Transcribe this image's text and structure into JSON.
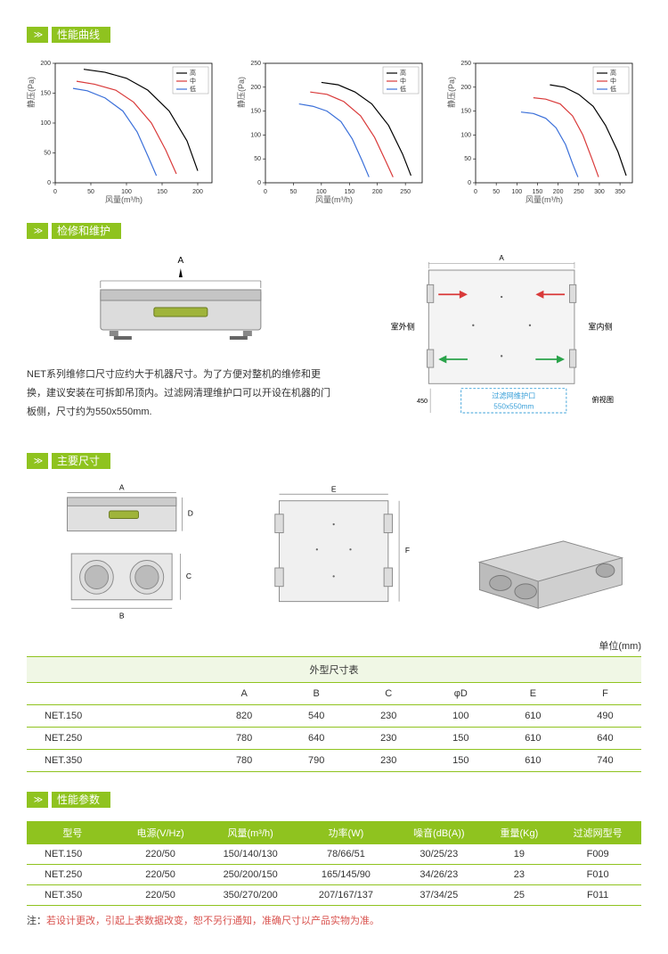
{
  "colors": {
    "accent": "#8fc31f",
    "line_high": "#000000",
    "line_mid": "#d93a3a",
    "line_low": "#3a6fd9"
  },
  "sections": {
    "performance_curve": "性能曲线",
    "maintenance": "检修和维护",
    "dimensions": "主要尺寸",
    "params": "性能参数"
  },
  "chart_common": {
    "ylabel": "静压(Pa)",
    "xlabel": "风量(m³/h)",
    "legend": [
      "高",
      "中",
      "低"
    ],
    "legend_colors": [
      "#000000",
      "#d93a3a",
      "#3a6fd9"
    ],
    "title_fontsize": 9,
    "axis_fontsize": 8,
    "grid_color": "#ffffff",
    "background_color": "#ffffff",
    "line_width": 1.2
  },
  "charts": [
    {
      "xlim": [
        0,
        220
      ],
      "ylim": [
        0,
        200
      ],
      "xtick_step": 50,
      "ytick_step": 50,
      "series": {
        "high": [
          [
            40,
            190
          ],
          [
            70,
            185
          ],
          [
            100,
            175
          ],
          [
            130,
            155
          ],
          [
            160,
            120
          ],
          [
            185,
            70
          ],
          [
            200,
            20
          ]
        ],
        "mid": [
          [
            30,
            170
          ],
          [
            55,
            165
          ],
          [
            85,
            155
          ],
          [
            110,
            135
          ],
          [
            135,
            100
          ],
          [
            155,
            55
          ],
          [
            170,
            15
          ]
        ],
        "low": [
          [
            25,
            158
          ],
          [
            45,
            154
          ],
          [
            70,
            142
          ],
          [
            95,
            120
          ],
          [
            115,
            85
          ],
          [
            130,
            45
          ],
          [
            142,
            12
          ]
        ]
      }
    },
    {
      "xlim": [
        0,
        280
      ],
      "ylim": [
        0,
        250
      ],
      "xtick_step": 50,
      "ytick_step": 50,
      "series": {
        "high": [
          [
            100,
            210
          ],
          [
            130,
            205
          ],
          [
            160,
            190
          ],
          [
            190,
            165
          ],
          [
            220,
            120
          ],
          [
            245,
            60
          ],
          [
            260,
            15
          ]
        ],
        "mid": [
          [
            80,
            190
          ],
          [
            110,
            185
          ],
          [
            140,
            170
          ],
          [
            170,
            140
          ],
          [
            195,
            95
          ],
          [
            215,
            45
          ],
          [
            228,
            12
          ]
        ],
        "low": [
          [
            60,
            165
          ],
          [
            85,
            160
          ],
          [
            110,
            150
          ],
          [
            135,
            128
          ],
          [
            155,
            92
          ],
          [
            172,
            48
          ],
          [
            185,
            12
          ]
        ]
      }
    },
    {
      "xlim": [
        0,
        380
      ],
      "ylim": [
        0,
        250
      ],
      "xtick_step": 50,
      "ytick_step": 50,
      "series": {
        "high": [
          [
            180,
            205
          ],
          [
            215,
            200
          ],
          [
            250,
            185
          ],
          [
            285,
            160
          ],
          [
            315,
            120
          ],
          [
            345,
            65
          ],
          [
            365,
            15
          ]
        ],
        "mid": [
          [
            140,
            178
          ],
          [
            170,
            175
          ],
          [
            205,
            165
          ],
          [
            235,
            140
          ],
          [
            260,
            100
          ],
          [
            282,
            50
          ],
          [
            298,
            12
          ]
        ],
        "low": [
          [
            110,
            148
          ],
          [
            140,
            145
          ],
          [
            170,
            135
          ],
          [
            195,
            115
          ],
          [
            218,
            80
          ],
          [
            235,
            40
          ],
          [
            248,
            12
          ]
        ]
      }
    }
  ],
  "maintenance": {
    "text": "NET系列维修口尺寸应约大于机器尺寸。为了方便对整机的维修和更换，建议安装在可拆卸吊顶内。过滤网清理维护口可以开设在机器的门板侧，尺寸约为550x550mm.",
    "label_A": "A",
    "right_labels": {
      "outside": "室外侧",
      "inside": "室内侧",
      "top_A": "A",
      "side_450": "450",
      "filter_port": "过滤网维护口",
      "filter_size": "550x550mm",
      "corner": "俯视图"
    },
    "arrow_colors": {
      "in": "#d93a3a",
      "out": "#2aa34a"
    }
  },
  "dim_labels": {
    "A": "A",
    "B": "B",
    "C": "C",
    "D": "D",
    "E": "E",
    "F": "F"
  },
  "unit_label": "单位(mm)",
  "dim_table": {
    "caption": "外型尺寸表",
    "columns": [
      "",
      "A",
      "B",
      "C",
      "φD",
      "E",
      "F"
    ],
    "rows": [
      [
        "NET.150",
        "820",
        "540",
        "230",
        "100",
        "610",
        "490"
      ],
      [
        "NET.250",
        "780",
        "640",
        "230",
        "150",
        "610",
        "640"
      ],
      [
        "NET.350",
        "780",
        "790",
        "230",
        "150",
        "610",
        "740"
      ]
    ]
  },
  "param_table": {
    "columns": [
      "型号",
      "电源(V/Hz)",
      "风量(m³/h)",
      "功率(W)",
      "噪音(dB(A))",
      "重量(Kg)",
      "过滤网型号"
    ],
    "rows": [
      [
        "NET.150",
        "220/50",
        "150/140/130",
        "78/66/51",
        "30/25/23",
        "19",
        "F009"
      ],
      [
        "NET.250",
        "220/50",
        "250/200/150",
        "165/145/90",
        "34/26/23",
        "23",
        "F010"
      ],
      [
        "NET.350",
        "220/50",
        "350/270/200",
        "207/167/137",
        "37/34/25",
        "25",
        "F011"
      ]
    ]
  },
  "note_prefix": "注：",
  "note": "若设计更改，引起上表数据改变，恕不另行通知，准确尺寸以产品实物为准。"
}
